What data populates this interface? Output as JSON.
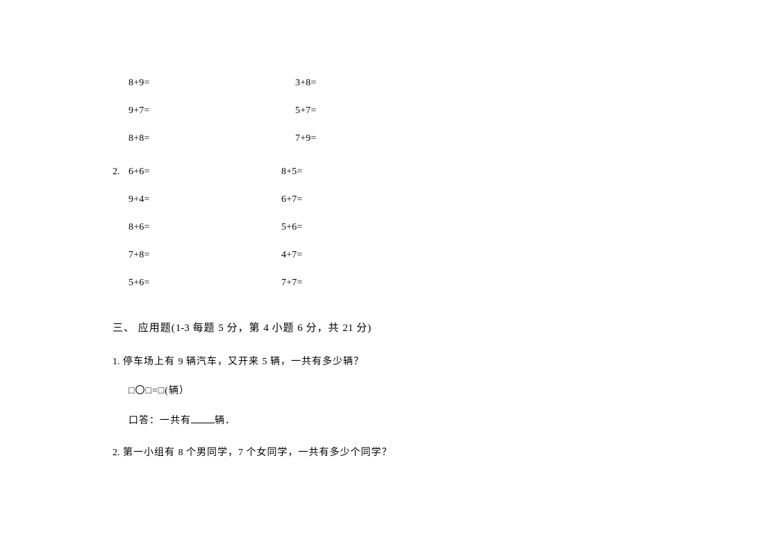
{
  "equations": {
    "group1": [
      {
        "left": "8+9=",
        "right": "3+8="
      },
      {
        "left": "9+7=",
        "right": "5+7="
      },
      {
        "left": "8+8=",
        "right": "7+9="
      }
    ],
    "group2_num": "2.",
    "group2": [
      {
        "left": "6+6=",
        "right": "8+5="
      },
      {
        "left": "9+4=",
        "right": "6+7="
      },
      {
        "left": "8+6=",
        "right": "5+6="
      },
      {
        "left": "7+8=",
        "right": "4+7="
      },
      {
        "left": "5+6=",
        "right": "7+7="
      }
    ]
  },
  "section3": {
    "heading_prefix": "三、 应用题(",
    "heading_nums1": "1-3",
    "heading_mid1": " 每题 ",
    "heading_nums2": "5",
    "heading_mid2": " 分，第 ",
    "heading_nums3": "4",
    "heading_mid3": " 小题 ",
    "heading_nums4": "6",
    "heading_mid4": " 分，共 ",
    "heading_nums5": "21",
    "heading_suffix": " 分)"
  },
  "q1": {
    "num": "1.",
    "text_prefix": " 停车场上有 ",
    "n1": "9",
    "mid1": " 辆汽车，又开来 ",
    "n2": "5",
    "mid2": " 辆，一共有多少辆？",
    "line2": "□〇□=□(辆）",
    "line3_prefix": "口答：一共有",
    "line3_suffix": "辆．"
  },
  "q2": {
    "num": "2.",
    "text_prefix": " 第一小组有 ",
    "n1": "8",
    "mid1": " 个男同学，",
    "n2": "7",
    "mid2": " 个女同学，一共有多少个同学？"
  }
}
